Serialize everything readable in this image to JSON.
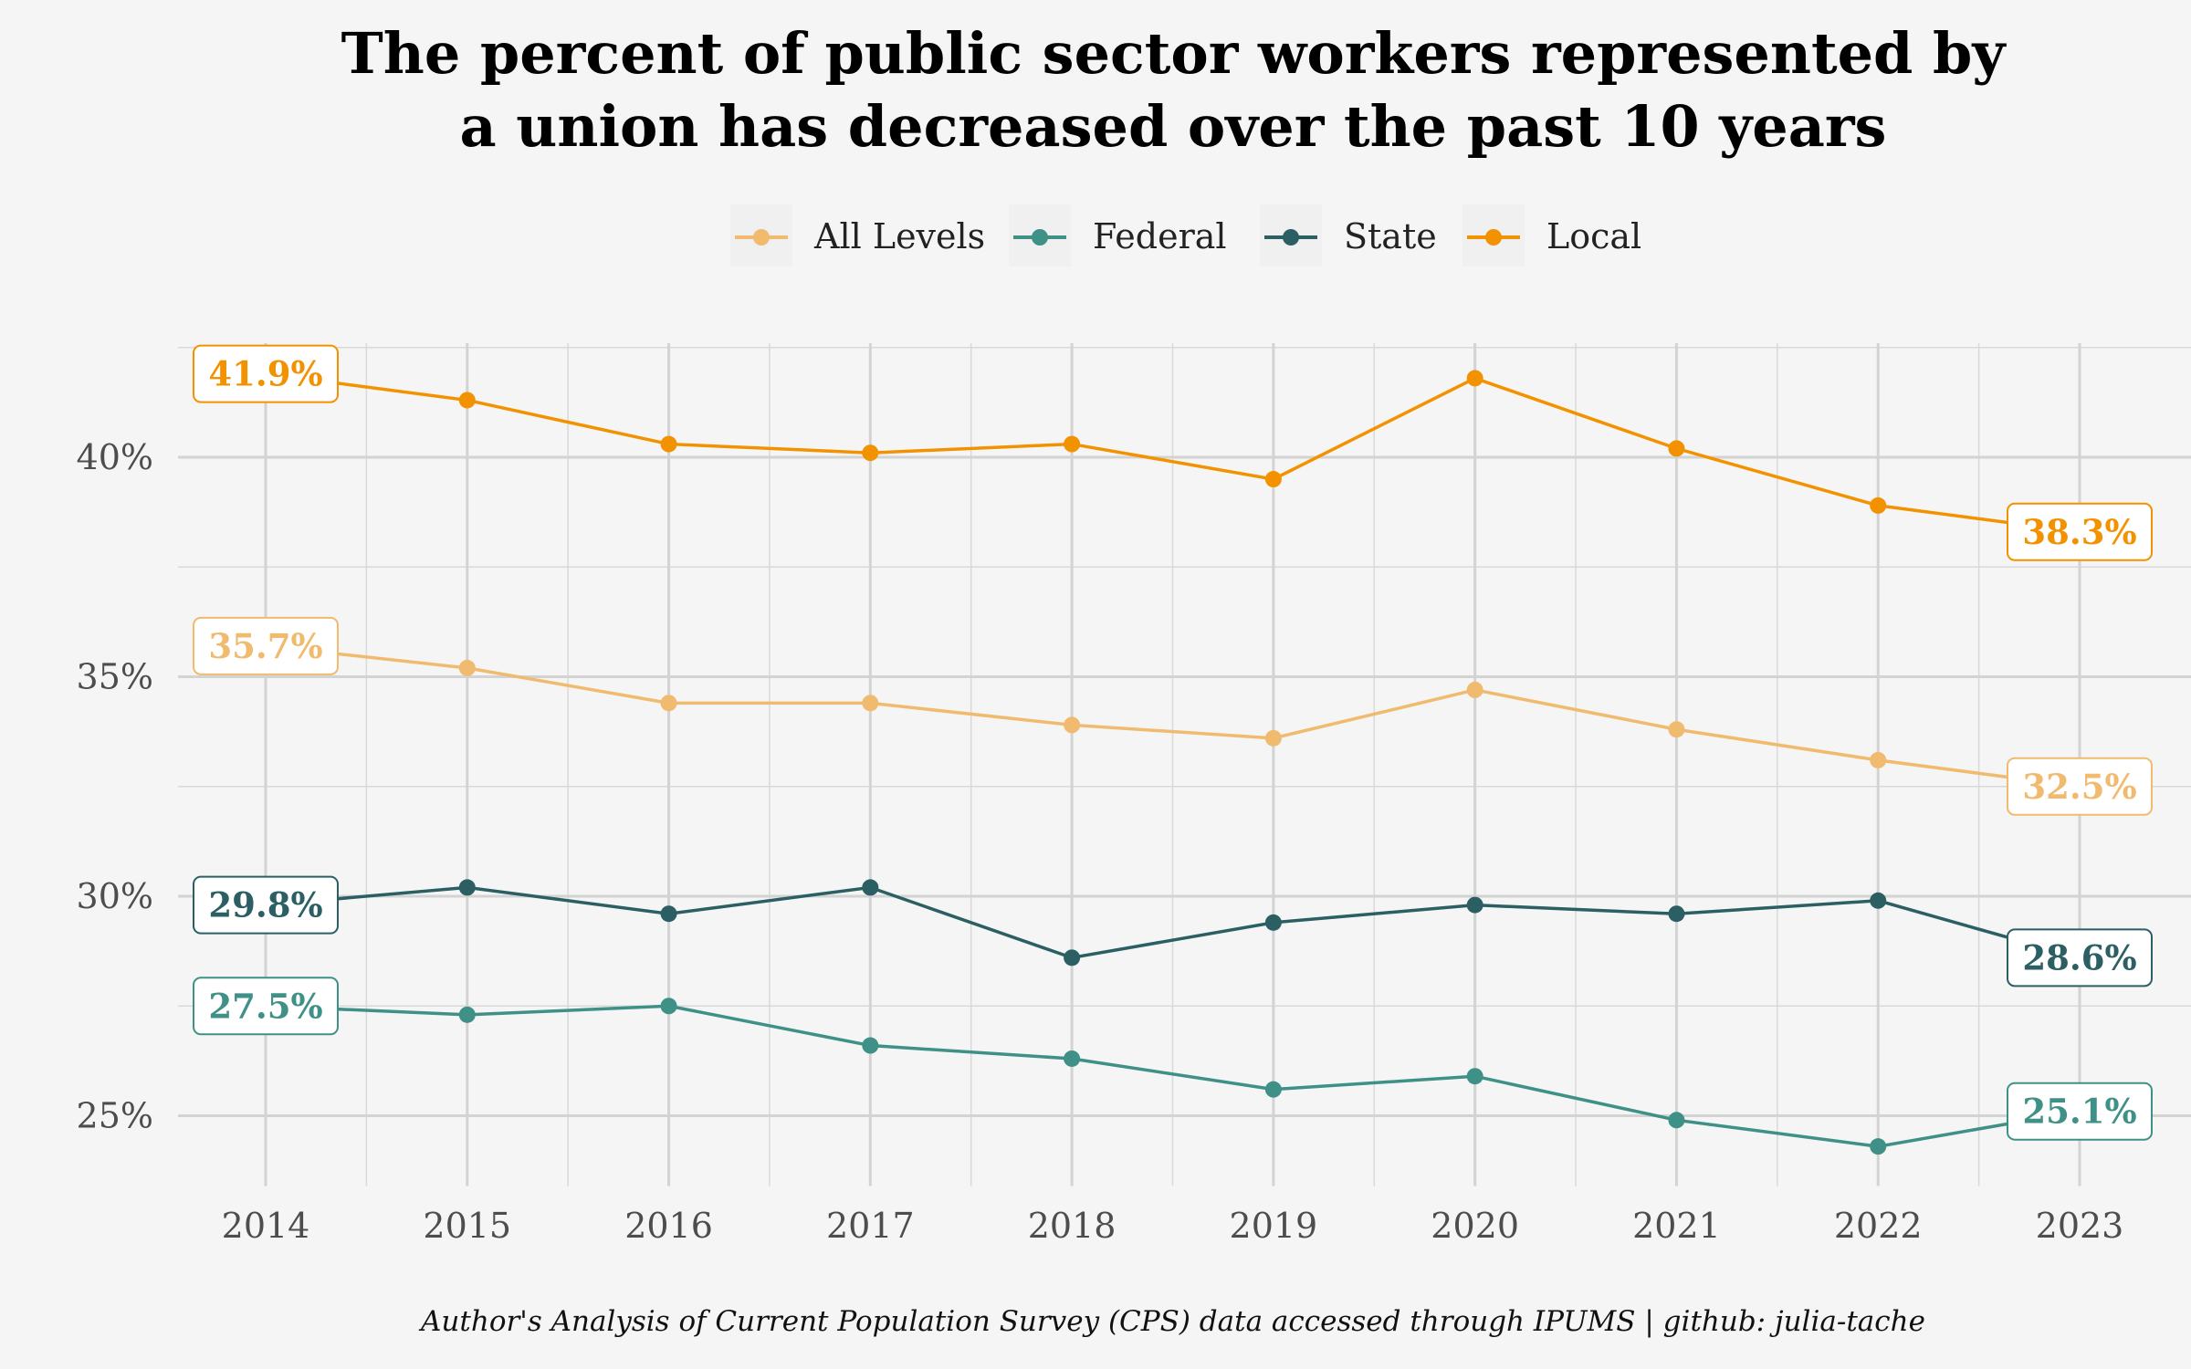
{
  "chart_data": {
    "type": "line",
    "title": [
      "The percent of public sector workers represented by",
      "a union has decreased over the past 10 years"
    ],
    "caption": "Author's Analysis of Current Population Survey (CPS) data accessed through IPUMS | github: julia-tache",
    "xlabel": "",
    "ylabel": "",
    "x": [
      2014,
      2015,
      2016,
      2017,
      2018,
      2019,
      2020,
      2021,
      2022,
      2023
    ],
    "x_tick_labels": [
      "2014",
      "2015",
      "2016",
      "2017",
      "2018",
      "2019",
      "2020",
      "2021",
      "2022",
      "2023"
    ],
    "y_ticks": [
      25,
      30,
      35,
      40
    ],
    "y_tick_labels": [
      "25%",
      "30%",
      "35%",
      "40%"
    ],
    "ylim": [
      23.4,
      42.6
    ],
    "grid": true,
    "legend_position": "top",
    "series": [
      {
        "name": "All Levels",
        "color": "#F0BB6E",
        "values": [
          35.7,
          35.2,
          34.4,
          34.4,
          33.9,
          33.6,
          34.7,
          33.8,
          33.1,
          32.5
        ],
        "start_label": "35.7%",
        "end_label": "32.5%"
      },
      {
        "name": "Federal",
        "color": "#3F9086",
        "values": [
          27.5,
          27.3,
          27.5,
          26.6,
          26.3,
          25.6,
          25.9,
          24.9,
          24.3,
          25.1
        ],
        "start_label": "27.5%",
        "end_label": "25.1%"
      },
      {
        "name": "State",
        "color": "#2B5F63",
        "values": [
          29.8,
          30.2,
          29.6,
          30.2,
          28.6,
          29.4,
          29.8,
          29.6,
          29.9,
          28.6
        ],
        "start_label": "29.8%",
        "end_label": "28.6%"
      },
      {
        "name": "Local",
        "color": "#F39200",
        "values": [
          41.9,
          41.3,
          40.3,
          40.1,
          40.3,
          39.5,
          41.8,
          40.2,
          38.9,
          38.3
        ],
        "start_label": "41.9%",
        "end_label": "38.3%"
      }
    ]
  }
}
